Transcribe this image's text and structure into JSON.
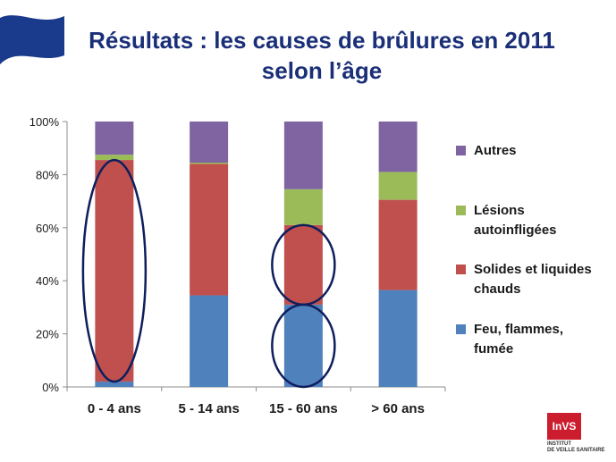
{
  "slide": {
    "title_line1": "Résultats : les causes de brûlures en 2011",
    "title_line2": "selon l’âge",
    "title_color": "#1a2f78"
  },
  "chart_data": {
    "type": "bar",
    "stacked": true,
    "percent": true,
    "categories": [
      "0 - 4 ans",
      "5 - 14 ans",
      "15 - 60 ans",
      "> 60 ans"
    ],
    "series": [
      {
        "name": "Feu, flammes, fumée",
        "color": "#4f81bd",
        "values": [
          2,
          34.5,
          31,
          36.5
        ]
      },
      {
        "name": "Solides et liquides chauds",
        "color": "#c0504d",
        "values": [
          83.5,
          49.5,
          30,
          34
        ]
      },
      {
        "name": "Lésions autoinfligées",
        "color": "#9bbb59",
        "values": [
          2,
          0.5,
          13.5,
          10.5
        ]
      },
      {
        "name": "Autres",
        "color": "#8064a2",
        "values": [
          12.5,
          15.5,
          25.5,
          19
        ]
      }
    ],
    "ylim": [
      0,
      100
    ],
    "yticks": [
      "0%",
      "20%",
      "40%",
      "60%",
      "80%",
      "100%"
    ],
    "ytick_values": [
      0,
      20,
      40,
      60,
      80,
      100
    ],
    "grid": false,
    "legend_position": "right",
    "highlights": [
      {
        "category": "0 - 4 ans",
        "from": 2,
        "to": 85.5,
        "color": "#0f1f5e"
      },
      {
        "category": "15 - 60 ans",
        "from": 31,
        "to": 61,
        "color": "#0f1f5e"
      },
      {
        "category": "15 - 60 ans",
        "from": 0,
        "to": 31,
        "color": "#0f1f5e"
      }
    ]
  },
  "legend": {
    "items": [
      {
        "lines": [
          "Autres"
        ],
        "color": "#8064a2"
      },
      {
        "lines": [
          "Lésions",
          "autoinfligées"
        ],
        "color": "#9bbb59"
      },
      {
        "lines": [
          "Solides et liquides",
          "chauds"
        ],
        "color": "#c0504d"
      },
      {
        "lines": [
          "Feu, flammes,",
          "fumée"
        ],
        "color": "#4f81bd"
      }
    ]
  },
  "logo": {
    "mark": "InVS",
    "subtitle_line1": "INSTITUT",
    "subtitle_line2": "DE VEILLE SANITAIRE"
  }
}
